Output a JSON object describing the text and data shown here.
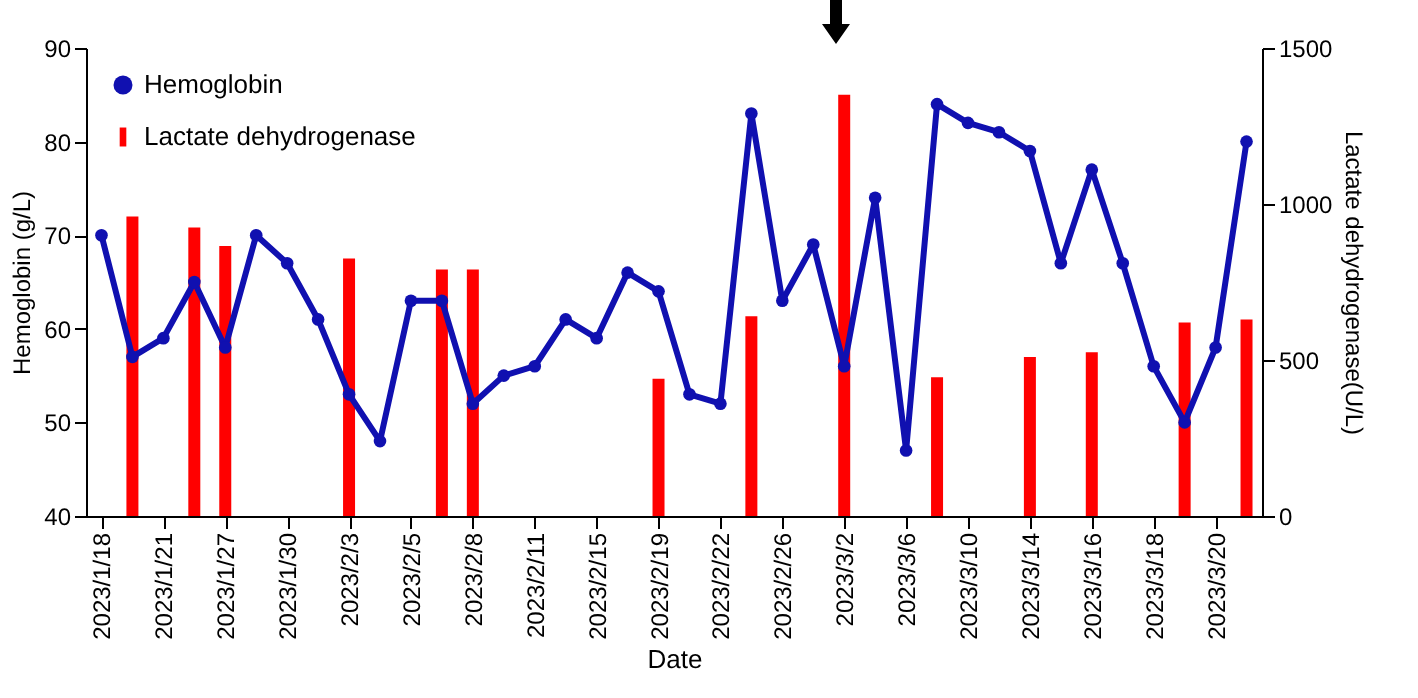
{
  "chart_data": {
    "type": "line",
    "xlabel": "Date",
    "ylabel": "Hemoglobin (g/L)",
    "y2label": "Lactate dehydrogenase(U/L)",
    "categories": [
      "2023/1/18",
      null,
      "2023/1/21",
      null,
      "2023/1/27",
      null,
      "2023/1/30",
      null,
      "2023/2/3",
      null,
      "2023/2/5",
      null,
      "2023/2/8",
      null,
      "2023/2/11",
      null,
      "2023/2/15",
      null,
      "2023/2/19",
      null,
      "2023/2/22",
      null,
      "2023/2/26",
      null,
      "2023/3/2",
      null,
      "2023/3/6",
      null,
      "2023/3/10",
      null,
      "2023/3/14",
      null,
      "2023/3/16",
      null,
      "2023/3/18",
      null,
      "2023/3/20",
      null
    ],
    "series": [
      {
        "name": "Hemoglobin",
        "marker": "circle",
        "color": "#1010b0",
        "values": [
          70,
          57,
          59,
          65,
          58,
          70,
          67,
          61,
          53,
          48,
          63,
          63,
          52,
          55,
          56,
          61,
          59,
          66,
          64,
          53,
          52,
          83,
          63,
          69,
          56,
          74,
          47,
          84,
          82,
          81,
          79,
          67,
          77,
          67,
          56,
          50,
          58,
          80
        ]
      },
      {
        "name": "Lactate dehydrogenase",
        "type": "bar",
        "axis": "y2",
        "color": "#ff0000",
        "values": [
          null,
          960,
          null,
          925,
          865,
          null,
          null,
          null,
          825,
          null,
          null,
          790,
          790,
          null,
          null,
          null,
          null,
          null,
          440,
          null,
          null,
          640,
          null,
          null,
          1350,
          null,
          null,
          445,
          null,
          null,
          510,
          null,
          525,
          null,
          null,
          620,
          null,
          630
        ]
      }
    ],
    "ylim": [
      40,
      90
    ],
    "yticks": [
      40,
      50,
      60,
      70,
      80,
      90
    ],
    "y2lim": [
      0,
      1500
    ],
    "y2ticks": [
      0,
      500,
      1000,
      1500
    ],
    "legend": "top left",
    "grid": false
  }
}
